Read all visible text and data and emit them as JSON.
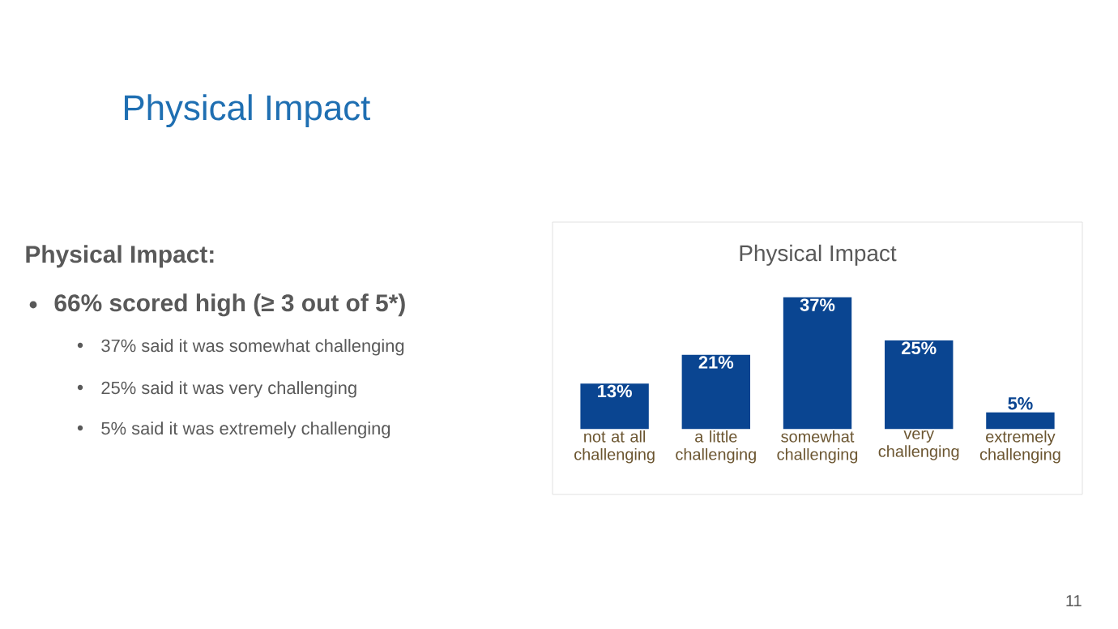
{
  "chart_data": {
    "type": "bar",
    "title": "Physical Impact",
    "categories": [
      "not at all challenging",
      "a little challenging",
      "somewhat challenging",
      "very challenging",
      "extremely challenging"
    ],
    "values": [
      13,
      21,
      37,
      25,
      5
    ],
    "value_labels": [
      "13%",
      "21%",
      "37%",
      "25%",
      "5%"
    ],
    "color": "#0a4591",
    "annotations": [
      "Physical Impact",
      "Physical Impact:",
      "66% scored high (≥ 3 out of 5*)",
      "37% said it was somewhat challenging",
      "25% said it was very challenging",
      "5% said it was extremely challenging",
      "11"
    ]
  }
}
